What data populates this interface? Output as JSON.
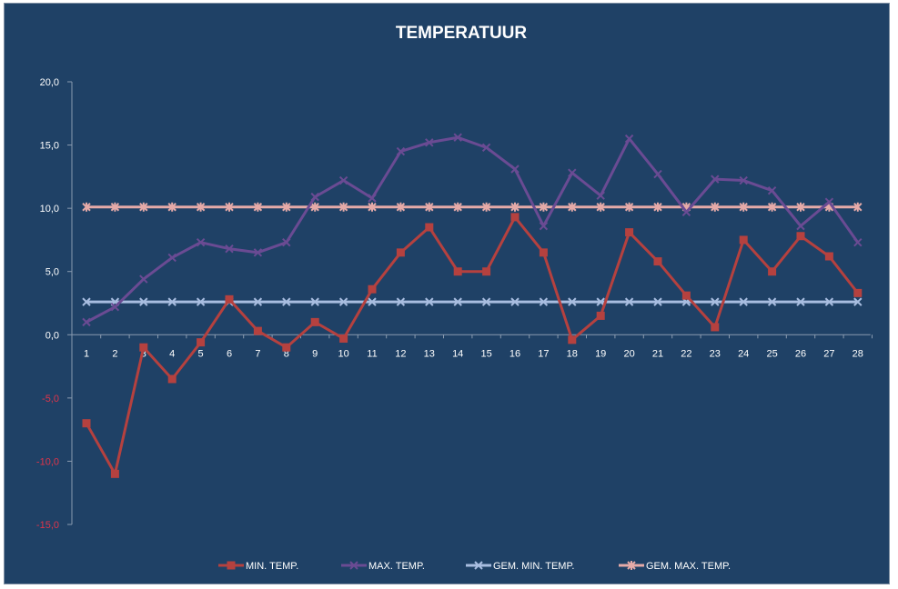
{
  "chart_data": {
    "type": "line",
    "title": "TEMPERATUUR",
    "xlabel": "",
    "ylabel": "",
    "ylim": [
      -15,
      20
    ],
    "yticks": [
      "20,0",
      "15,0",
      "10,0",
      "5,0",
      "0,0",
      "-5,0",
      "-10,0",
      "-15,0"
    ],
    "ytick_values": [
      20,
      15,
      10,
      5,
      0,
      -5,
      -10,
      -15
    ],
    "x": [
      "1",
      "2",
      "3",
      "4",
      "5",
      "6",
      "7",
      "8",
      "9",
      "10",
      "11",
      "12",
      "13",
      "14",
      "15",
      "16",
      "17",
      "18",
      "19",
      "20",
      "21",
      "22",
      "23",
      "24",
      "25",
      "26",
      "27",
      "28"
    ],
    "grid": false,
    "legend": "bottom",
    "series": [
      {
        "name": "MIN. TEMP.",
        "color": "#b5413f",
        "marker": "square",
        "values": [
          -7.0,
          -11.0,
          -1.0,
          -3.5,
          -0.6,
          2.8,
          0.3,
          -1.0,
          1.0,
          -0.3,
          3.6,
          6.5,
          8.5,
          5.0,
          5.0,
          9.3,
          6.5,
          -0.4,
          1.5,
          8.1,
          5.8,
          3.1,
          0.6,
          7.5,
          5.0,
          7.8,
          6.2,
          3.3
        ]
      },
      {
        "name": "MAX. TEMP.",
        "color": "#6a4b93",
        "marker": "x",
        "values": [
          1.0,
          2.2,
          4.4,
          6.1,
          7.3,
          6.8,
          6.5,
          7.3,
          10.9,
          12.2,
          10.8,
          14.5,
          15.2,
          15.6,
          14.8,
          13.1,
          8.6,
          12.8,
          11.0,
          15.5,
          12.7,
          9.7,
          12.3,
          12.2,
          11.4,
          8.6,
          10.5,
          7.3
        ]
      },
      {
        "name": "GEM. MIN. TEMP.",
        "color": "#a8bde0",
        "marker": "x",
        "values": [
          2.6,
          2.6,
          2.6,
          2.6,
          2.6,
          2.6,
          2.6,
          2.6,
          2.6,
          2.6,
          2.6,
          2.6,
          2.6,
          2.6,
          2.6,
          2.6,
          2.6,
          2.6,
          2.6,
          2.6,
          2.6,
          2.6,
          2.6,
          2.6,
          2.6,
          2.6,
          2.6,
          2.6
        ]
      },
      {
        "name": "GEM. MAX. TEMP.",
        "color": "#e5aaa8",
        "marker": "star",
        "values": [
          10.1,
          10.1,
          10.1,
          10.1,
          10.1,
          10.1,
          10.1,
          10.1,
          10.1,
          10.1,
          10.1,
          10.1,
          10.1,
          10.1,
          10.1,
          10.1,
          10.1,
          10.1,
          10.1,
          10.1,
          10.1,
          10.1,
          10.1,
          10.1,
          10.1,
          10.1,
          10.1,
          10.1
        ]
      }
    ]
  }
}
